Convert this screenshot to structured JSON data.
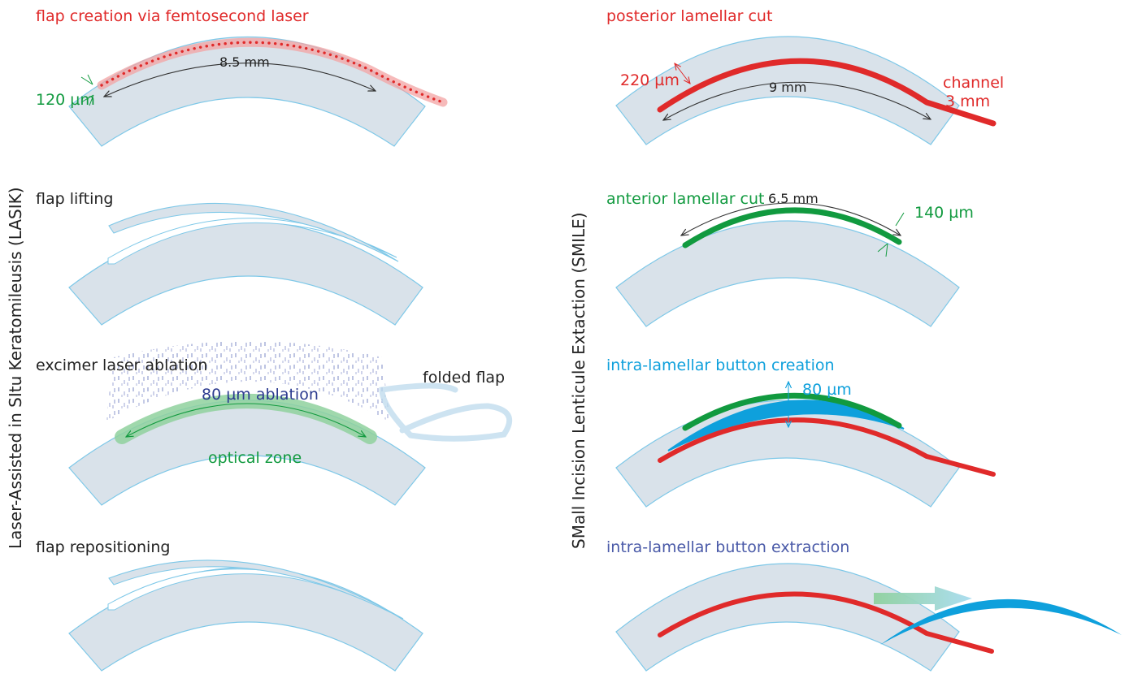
{
  "colors": {
    "cornea_fill": "#d9e2ea",
    "cornea_stroke": "#7ec8e8",
    "red": "#e02a2a",
    "green": "#119a3f",
    "blue": "#0ea0dc",
    "navy": "#2b3a8f",
    "dark": "#222222",
    "button_extract_label": "#4a5aa8"
  },
  "lasik": {
    "side_title": "Laser-Assisted in SItu Keratomileusis (LASIK)",
    "step1": {
      "title": "flap creation via femtosecond laser",
      "diameter": "8.5 mm",
      "thickness": "120 µm"
    },
    "step2": {
      "title": "flap lifting"
    },
    "step3": {
      "title": "excimer laser ablation",
      "ablation": "80 µm ablation",
      "zone": "optical zone",
      "folded": "folded flap"
    },
    "step4": {
      "title": "flap repositioning"
    }
  },
  "smile": {
    "side_title": "SMall Incision Lenticule Extaction (SMILE)",
    "step1": {
      "title": "posterior lamellar cut",
      "depth": "220 µm",
      "diameter": "9 mm",
      "channel": "channel",
      "channel_len": "3 mm"
    },
    "step2": {
      "title": "anterior lamellar cut",
      "diameter": "6.5 mm",
      "depth": "140 µm"
    },
    "step3": {
      "title": "intra-lamellar button creation",
      "thickness": "80 µm"
    },
    "step4": {
      "title": "intra-lamellar button extraction"
    }
  }
}
